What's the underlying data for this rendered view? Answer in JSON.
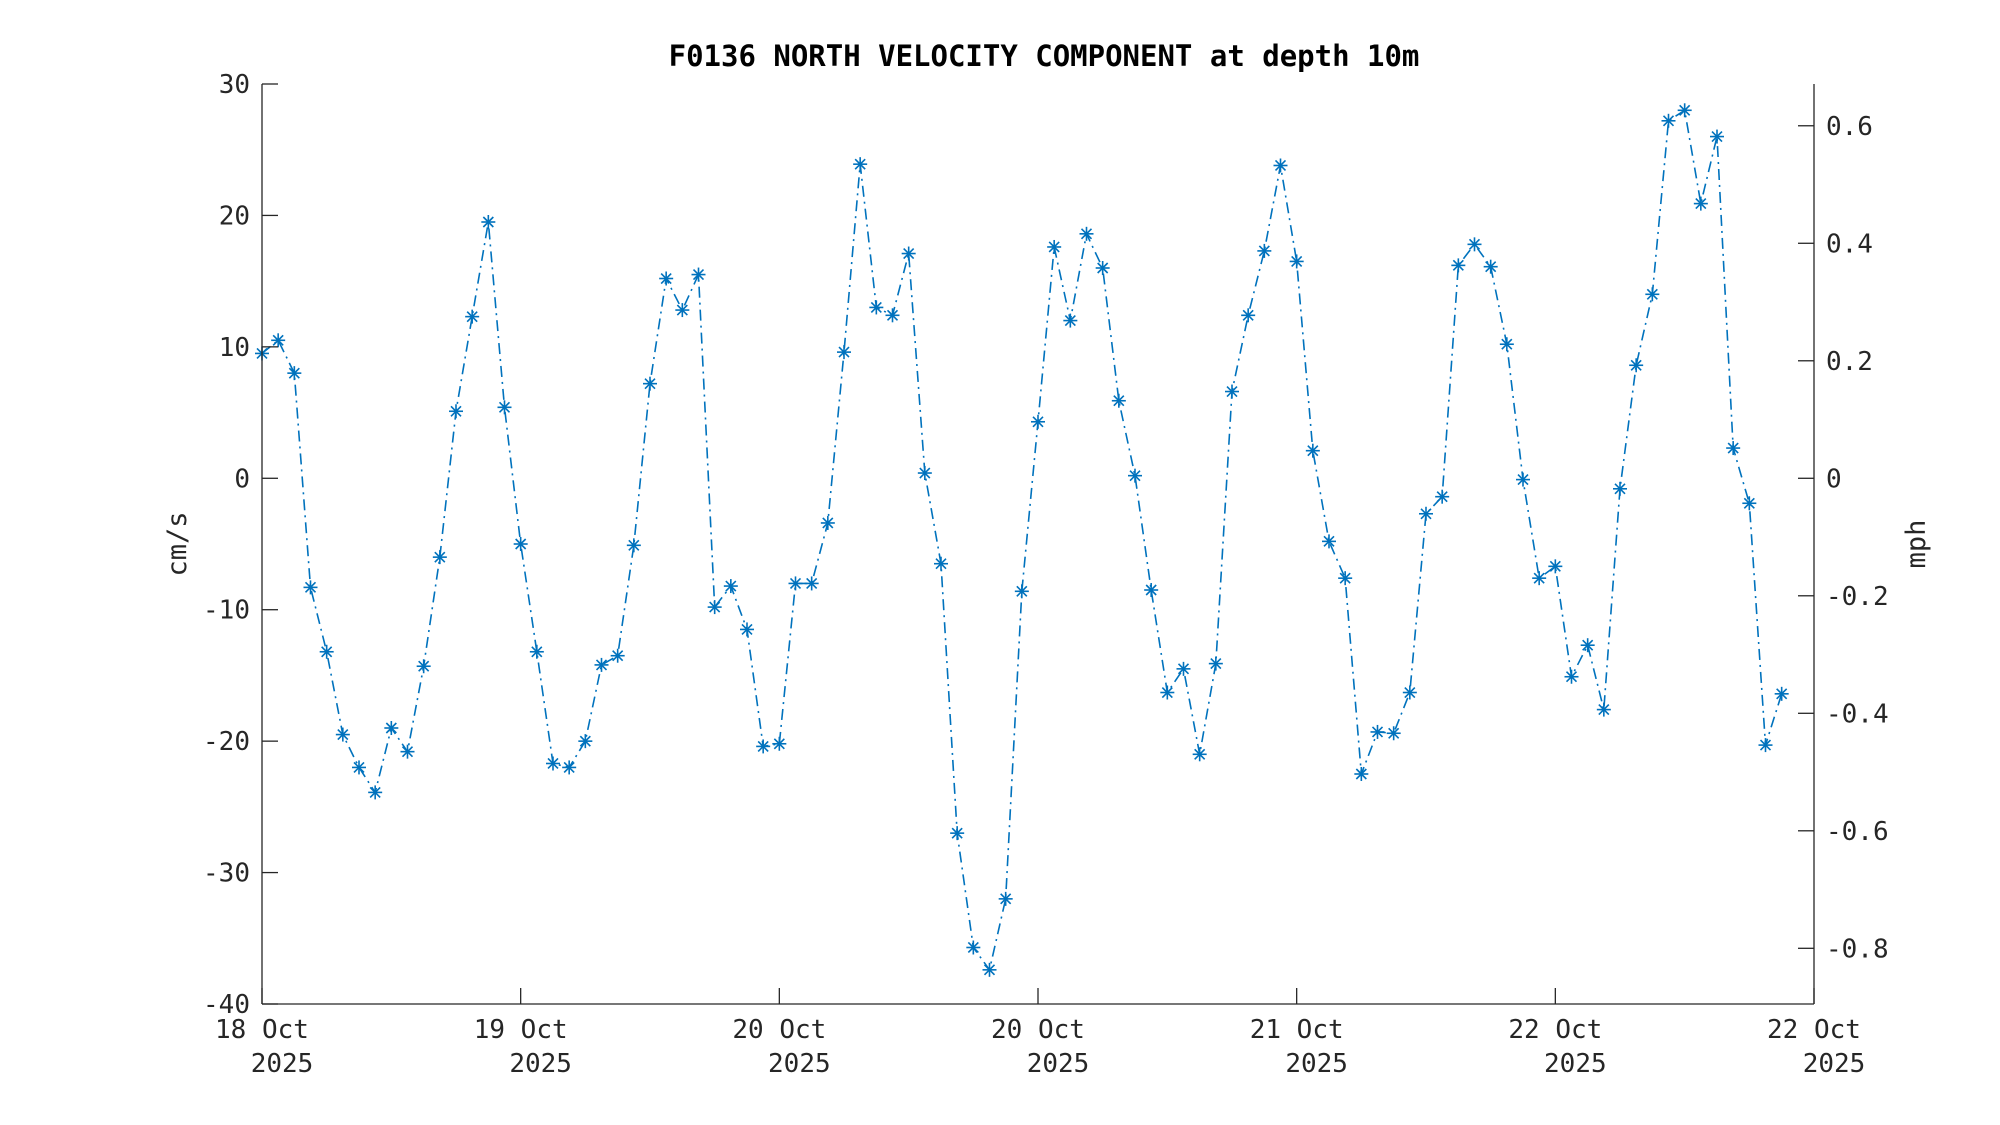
{
  "chart_data": {
    "type": "line",
    "title": "F0136 NORTH VELOCITY COMPONENT at depth 10m",
    "ylabel": "cm/s",
    "ylabel_right": "mph",
    "ylim": [
      -40,
      30
    ],
    "yticks": [
      -40,
      -30,
      -20,
      -10,
      0,
      10,
      20,
      30
    ],
    "ylim_right": [
      -0.8948,
      0.6711
    ],
    "yticks_right": [
      -0.8,
      -0.6,
      -0.4,
      -0.2,
      0,
      0.2,
      0.4,
      0.6
    ],
    "xlim": [
      0,
      96
    ],
    "xticks": [
      {
        "x": 0,
        "line1": "18 Oct",
        "line2": "2025"
      },
      {
        "x": 16,
        "line1": "19 Oct",
        "line2": "2025"
      },
      {
        "x": 32,
        "line1": "20 Oct",
        "line2": "2025"
      },
      {
        "x": 48,
        "line1": "20 Oct",
        "line2": "2025"
      },
      {
        "x": 64,
        "line1": "21 Oct",
        "line2": "2025"
      },
      {
        "x": 80,
        "line1": "22 Oct",
        "line2": "2025"
      },
      {
        "x": 96,
        "line1": "22 Oct",
        "line2": "2025"
      }
    ],
    "grid": false,
    "series": [
      {
        "color": "#0072BD",
        "line_style": "dash-dot",
        "marker": "asterisk",
        "values": [
          9.5,
          10.5,
          8.0,
          -8.3,
          -13.2,
          -19.5,
          -22.0,
          -23.9,
          -19.0,
          -20.8,
          -14.3,
          -6.0,
          5.1,
          12.3,
          19.5,
          5.4,
          -5.0,
          -13.2,
          -21.7,
          -22.0,
          -20.0,
          -14.2,
          -13.5,
          -5.1,
          7.2,
          15.2,
          12.8,
          15.5,
          -9.8,
          -8.2,
          -11.5,
          -20.4,
          -20.2,
          -8.0,
          -8.0,
          -3.4,
          9.6,
          23.9,
          13.0,
          12.4,
          17.1,
          0.4,
          -6.5,
          -27.0,
          -35.7,
          -37.4,
          -32.0,
          -8.6,
          4.3,
          17.6,
          12.0,
          18.6,
          16.0,
          5.9,
          0.2,
          -8.5,
          -16.3,
          -14.5,
          -21.0,
          -14.1,
          6.6,
          12.4,
          17.3,
          23.8,
          16.5,
          2.1,
          -4.8,
          -7.6,
          -22.5,
          -19.3,
          -19.4,
          -16.3,
          -2.7,
          -1.4,
          16.2,
          17.8,
          16.1,
          10.2,
          -0.1,
          -7.6,
          -6.7,
          -15.1,
          -12.7,
          -17.6,
          -0.8,
          8.6,
          14.0,
          27.2,
          28.0,
          20.9,
          26.0,
          2.3,
          -1.9,
          -20.3,
          -16.4
        ]
      }
    ]
  }
}
